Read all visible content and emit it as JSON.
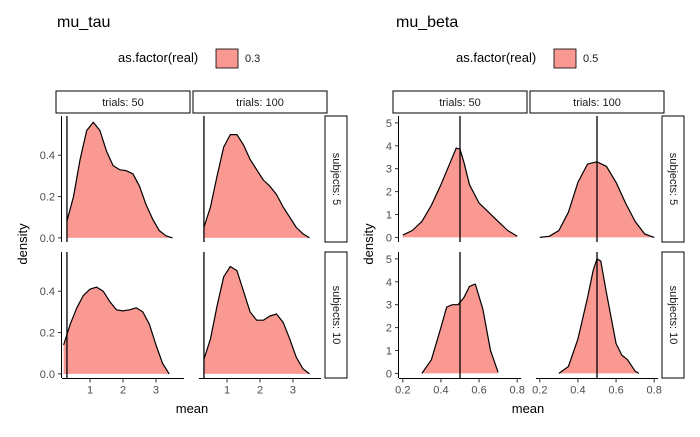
{
  "chart_data": [
    {
      "type": "area",
      "chart_kind": "density (faceted)",
      "title": "mu_tau",
      "xlabel": "mean",
      "ylabel": "density",
      "legend": {
        "title": "as.factor(real)",
        "label": "0.3",
        "position": "top"
      },
      "fill_color": "#f8766d",
      "fill_opacity": 0.75,
      "reference_line": 0.3,
      "xlim": [
        0.15,
        3.85
      ],
      "ylim": [
        -0.02,
        0.59
      ],
      "xticks": [
        1,
        2,
        3
      ],
      "xtick_labels": [
        "1",
        "2",
        "3"
      ],
      "yticks": [
        0.0,
        0.2,
        0.4
      ],
      "ytick_labels": [
        "0.0",
        "0.2",
        "0.4"
      ],
      "col_strips": [
        "trials: 50",
        "trials: 100"
      ],
      "row_strips": [
        "subjects: 5",
        "subjects: 10"
      ],
      "panels": [
        {
          "col": "trials: 50",
          "row": "subjects: 5",
          "x": [
            0.3,
            0.5,
            0.7,
            0.9,
            1.1,
            1.3,
            1.5,
            1.7,
            1.9,
            2.1,
            2.3,
            2.5,
            2.7,
            2.9,
            3.1,
            3.3,
            3.5
          ],
          "y": [
            0.08,
            0.2,
            0.38,
            0.52,
            0.56,
            0.52,
            0.42,
            0.35,
            0.33,
            0.325,
            0.31,
            0.25,
            0.16,
            0.09,
            0.035,
            0.01,
            0.0
          ]
        },
        {
          "col": "trials: 100",
          "row": "subjects: 5",
          "x": [
            0.3,
            0.5,
            0.7,
            0.9,
            1.1,
            1.3,
            1.5,
            1.7,
            1.9,
            2.1,
            2.3,
            2.5,
            2.7,
            2.9,
            3.1,
            3.3,
            3.5
          ],
          "y": [
            0.05,
            0.15,
            0.3,
            0.44,
            0.5,
            0.5,
            0.45,
            0.38,
            0.33,
            0.28,
            0.25,
            0.21,
            0.15,
            0.1,
            0.05,
            0.02,
            0.0
          ]
        },
        {
          "col": "trials: 50",
          "row": "subjects: 10",
          "x": [
            0.2,
            0.4,
            0.6,
            0.8,
            1.0,
            1.2,
            1.4,
            1.6,
            1.8,
            2.0,
            2.2,
            2.4,
            2.6,
            2.8,
            3.0,
            3.2,
            3.4
          ],
          "y": [
            0.14,
            0.24,
            0.32,
            0.38,
            0.41,
            0.42,
            0.4,
            0.35,
            0.31,
            0.305,
            0.31,
            0.32,
            0.3,
            0.24,
            0.14,
            0.05,
            0.0
          ]
        },
        {
          "col": "trials: 100",
          "row": "subjects: 10",
          "x": [
            0.3,
            0.5,
            0.7,
            0.9,
            1.1,
            1.3,
            1.5,
            1.7,
            1.9,
            2.1,
            2.3,
            2.5,
            2.7,
            2.9,
            3.1,
            3.3,
            3.5
          ],
          "y": [
            0.07,
            0.17,
            0.33,
            0.47,
            0.52,
            0.5,
            0.4,
            0.3,
            0.26,
            0.26,
            0.28,
            0.29,
            0.25,
            0.17,
            0.08,
            0.025,
            0.0
          ]
        }
      ]
    },
    {
      "type": "area",
      "chart_kind": "density (faceted)",
      "title": "mu_beta",
      "xlabel": "mean",
      "ylabel": "density",
      "legend": {
        "title": "as.factor(real)",
        "label": "0.5",
        "position": "top"
      },
      "fill_color": "#f8766d",
      "fill_opacity": 0.75,
      "reference_line": 0.5,
      "xlim": [
        0.18,
        0.82
      ],
      "ylim": [
        -0.2,
        5.3
      ],
      "xticks": [
        0.2,
        0.4,
        0.6,
        0.8
      ],
      "xtick_labels": [
        "0.2",
        "0.4",
        "0.6",
        "0.8"
      ],
      "yticks": [
        0,
        1,
        2,
        3,
        4,
        5
      ],
      "ytick_labels": [
        "0",
        "1",
        "2",
        "3",
        "4",
        "5"
      ],
      "col_strips": [
        "trials: 50",
        "trials: 100"
      ],
      "row_strips": [
        "subjects: 5",
        "subjects: 10"
      ],
      "panels": [
        {
          "col": "trials: 50",
          "row": "subjects: 5",
          "x": [
            0.2,
            0.25,
            0.3,
            0.35,
            0.4,
            0.45,
            0.48,
            0.5,
            0.52,
            0.55,
            0.6,
            0.65,
            0.7,
            0.75,
            0.8
          ],
          "y": [
            0.1,
            0.3,
            0.7,
            1.4,
            2.3,
            3.3,
            3.9,
            3.85,
            3.3,
            2.3,
            1.5,
            1.1,
            0.7,
            0.3,
            0.05
          ]
        },
        {
          "col": "trials: 100",
          "row": "subjects: 5",
          "x": [
            0.2,
            0.25,
            0.3,
            0.35,
            0.4,
            0.45,
            0.5,
            0.55,
            0.6,
            0.65,
            0.7,
            0.75,
            0.8
          ],
          "y": [
            0.0,
            0.05,
            0.3,
            1.1,
            2.4,
            3.2,
            3.3,
            3.1,
            2.4,
            1.5,
            0.7,
            0.15,
            0.0
          ]
        },
        {
          "col": "trials: 50",
          "row": "subjects: 10",
          "x": [
            0.3,
            0.35,
            0.4,
            0.43,
            0.46,
            0.49,
            0.52,
            0.55,
            0.58,
            0.62,
            0.66,
            0.7
          ],
          "y": [
            0.0,
            0.6,
            2.0,
            2.9,
            3.0,
            3.0,
            3.3,
            3.8,
            3.9,
            2.8,
            1.0,
            0.05
          ]
        },
        {
          "col": "trials: 100",
          "row": "subjects: 10",
          "x": [
            0.3,
            0.35,
            0.4,
            0.45,
            0.48,
            0.5,
            0.52,
            0.55,
            0.6,
            0.63,
            0.66,
            0.7,
            0.72
          ],
          "y": [
            0.0,
            0.3,
            1.5,
            3.3,
            4.5,
            5.0,
            4.9,
            3.5,
            1.3,
            0.8,
            0.6,
            0.1,
            0.0
          ]
        }
      ]
    }
  ]
}
